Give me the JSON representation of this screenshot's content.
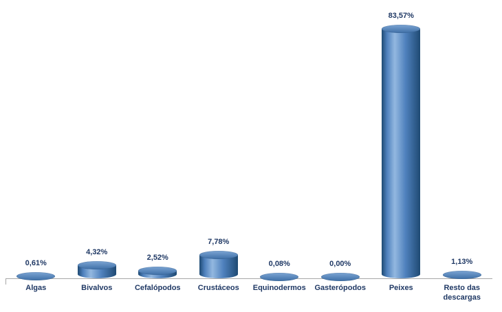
{
  "chart_data": {
    "type": "bar",
    "subtype": "cylinder-3d",
    "title": "",
    "xlabel": "",
    "ylabel": "",
    "grid": false,
    "legend": false,
    "ylim": [
      0,
      90
    ],
    "categories": [
      "Algas",
      "Bivalvos",
      "Cefalópodos",
      "Crustáceos",
      "Equinodermos",
      "Gasterópodos",
      "Peixes",
      "Resto das descargas"
    ],
    "values": [
      0.61,
      4.32,
      2.52,
      7.78,
      0.08,
      0.0,
      83.57,
      1.13
    ],
    "value_labels": [
      "0,61%",
      "4,32%",
      "2,52%",
      "7,78%",
      "0,08%",
      "0,00%",
      "83,57%",
      "1,13%"
    ],
    "colors": {
      "bar_dark": "#1f4a73",
      "bar_mid": "#4f81bd",
      "bar_light": "#93b8e0",
      "top_light": "#7ca5d4",
      "top_dark": "#3e6fa6",
      "label_text": "#1f3864",
      "axis_line": "#a6a6a6",
      "background": "#ffffff"
    }
  }
}
